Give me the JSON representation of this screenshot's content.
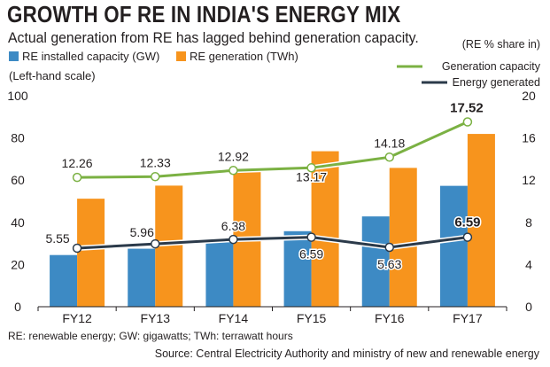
{
  "title": "GROWTH OF RE IN INDIA'S ENERGY MIX",
  "subtitle": "Actual generation from RE has lagged behind generation capacity.",
  "footnote": "RE: renewable energy; GW: gigawatts; TWh: terrawatt hours",
  "source": "Source: Central Electricity Authority and ministry of new and renewable energy",
  "chart_data": {
    "type": "bar",
    "categories": [
      "FY12",
      "FY13",
      "FY14",
      "FY15",
      "FY16",
      "FY17"
    ],
    "left_axis": {
      "note": "(Left-hand scale)",
      "range": [
        0,
        100
      ],
      "ticks": [
        "0",
        "20",
        "40",
        "60",
        "80",
        "100"
      ]
    },
    "right_axis": {
      "label": "(RE % share in)",
      "range": [
        0,
        20
      ],
      "ticks": [
        "0",
        "4",
        "8",
        "12",
        "16",
        "20"
      ]
    },
    "bar_series": [
      {
        "name": "RE installed capacity (GW)",
        "color": "#3d8ac4",
        "values": [
          24.5,
          27.5,
          31.5,
          35.8,
          42.8,
          57.3
        ]
      },
      {
        "name": "RE generation (TWh)",
        "color": "#f7941d",
        "values": [
          51.2,
          57.4,
          64.0,
          73.7,
          65.8,
          81.9
        ]
      }
    ],
    "line_series": [
      {
        "name": "Generation capacity",
        "color": "#7bb143",
        "values": [
          12.26,
          12.33,
          12.92,
          13.17,
          14.18,
          17.52
        ],
        "labels": [
          "12.26",
          "12.33",
          "12.92",
          "13.17",
          "14.18",
          "17.52"
        ]
      },
      {
        "name": "Energy generated",
        "color": "#2b3a4a",
        "values": [
          5.55,
          5.96,
          6.38,
          6.59,
          5.63,
          6.59
        ],
        "labels": [
          "5.55",
          "5.96",
          "6.38",
          "6.59",
          "5.63",
          "6.59"
        ]
      }
    ],
    "grid": false,
    "legend_position": "top"
  }
}
